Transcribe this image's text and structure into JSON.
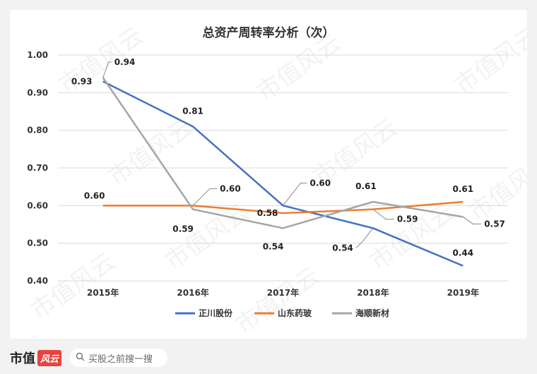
{
  "chart_data": {
    "type": "line",
    "title": "总资产周转率分析（次）",
    "categories": [
      "2015年",
      "2016年",
      "2017年",
      "2018年",
      "2019年"
    ],
    "ylim": [
      0.4,
      1.0
    ],
    "yticks": [
      "0.40",
      "0.50",
      "0.60",
      "0.70",
      "0.80",
      "0.90",
      "1.00"
    ],
    "grid": true,
    "legend_position": "bottom",
    "series": [
      {
        "name": "正川股份",
        "color": "#4472c4",
        "values": [
          0.93,
          0.81,
          0.6,
          0.54,
          0.44
        ],
        "labels": [
          "0.93",
          "0.81",
          "0.60",
          "0.54",
          "0.44"
        ]
      },
      {
        "name": "山东药玻",
        "color": "#ed7d31",
        "values": [
          0.6,
          0.6,
          0.58,
          0.59,
          0.61
        ],
        "labels": [
          "0.60",
          "0.60",
          "0.58",
          "0.59",
          "0.61"
        ]
      },
      {
        "name": "海顺新材",
        "color": "#a5a5a5",
        "values": [
          0.94,
          0.59,
          0.54,
          0.61,
          0.57
        ],
        "labels": [
          "0.94",
          "0.59",
          "0.54",
          "0.61",
          "0.57"
        ]
      }
    ]
  },
  "watermark": "市值风云",
  "footer": {
    "brand_text": "市值",
    "brand_badge": "风云",
    "search_icon": "search-icon",
    "search_placeholder": "买股之前搜一搜"
  }
}
